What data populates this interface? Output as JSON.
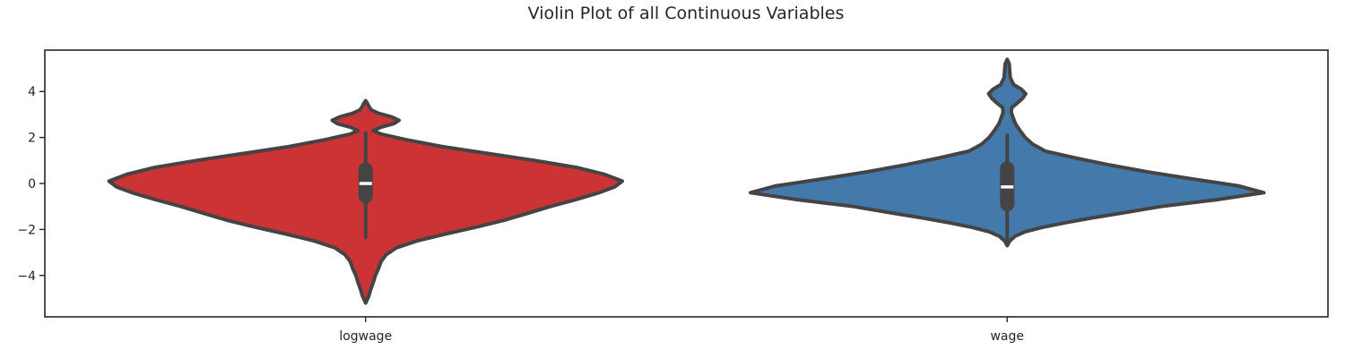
{
  "chart_data": {
    "type": "violin",
    "title": "Violin Plot of all Continuous Variables",
    "xlabel": "",
    "ylabel": "",
    "ylim": [
      -5.8,
      5.8
    ],
    "yticks": [
      -4,
      -2,
      0,
      2,
      4
    ],
    "ytick_labels": [
      "−4",
      "−2",
      "0",
      "2",
      "4"
    ],
    "grid": false,
    "categories": [
      "logwage",
      "wage"
    ],
    "series": [
      {
        "category": "logwage",
        "color": "#cb3335",
        "median": 0.0,
        "q1": -0.55,
        "q3": 0.6,
        "whisker_low": -2.35,
        "whisker_high": 2.2,
        "min": -5.2,
        "max": 3.6,
        "density": [
          [
            -5.2,
            0.0
          ],
          [
            -4.9,
            0.012
          ],
          [
            -4.6,
            0.02
          ],
          [
            -4.3,
            0.03
          ],
          [
            -4.0,
            0.038
          ],
          [
            -3.7,
            0.05
          ],
          [
            -3.4,
            0.06
          ],
          [
            -3.1,
            0.08
          ],
          [
            -2.8,
            0.12
          ],
          [
            -2.5,
            0.2
          ],
          [
            -2.2,
            0.31
          ],
          [
            -1.9,
            0.43
          ],
          [
            -1.6,
            0.54
          ],
          [
            -1.3,
            0.63
          ],
          [
            -1.0,
            0.72
          ],
          [
            -0.7,
            0.82
          ],
          [
            -0.4,
            0.91
          ],
          [
            -0.15,
            0.97
          ],
          [
            0.1,
            1.0
          ],
          [
            0.4,
            0.93
          ],
          [
            0.7,
            0.82
          ],
          [
            1.0,
            0.66
          ],
          [
            1.3,
            0.48
          ],
          [
            1.6,
            0.3
          ],
          [
            1.9,
            0.16
          ],
          [
            2.15,
            0.06
          ],
          [
            2.3,
            0.03
          ],
          [
            2.45,
            0.06
          ],
          [
            2.6,
            0.11
          ],
          [
            2.75,
            0.13
          ],
          [
            2.9,
            0.1
          ],
          [
            3.05,
            0.05
          ],
          [
            3.2,
            0.022
          ],
          [
            3.35,
            0.013
          ],
          [
            3.5,
            0.006
          ],
          [
            3.6,
            0.0
          ]
        ]
      },
      {
        "category": "wage",
        "color": "#4479ab",
        "median": -0.15,
        "q1": -0.9,
        "q3": 0.65,
        "whisker_low": -2.5,
        "whisker_high": 2.1,
        "min": -2.7,
        "max": 5.4,
        "density": [
          [
            -2.7,
            0.0
          ],
          [
            -2.5,
            0.01
          ],
          [
            -2.3,
            0.03
          ],
          [
            -2.1,
            0.07
          ],
          [
            -1.9,
            0.14
          ],
          [
            -1.7,
            0.23
          ],
          [
            -1.5,
            0.33
          ],
          [
            -1.3,
            0.44
          ],
          [
            -1.0,
            0.6
          ],
          [
            -0.7,
            0.82
          ],
          [
            -0.4,
            1.0
          ],
          [
            -0.1,
            0.9
          ],
          [
            0.2,
            0.72
          ],
          [
            0.5,
            0.55
          ],
          [
            0.8,
            0.4
          ],
          [
            1.1,
            0.27
          ],
          [
            1.4,
            0.15
          ],
          [
            1.7,
            0.1
          ],
          [
            2.0,
            0.07
          ],
          [
            2.3,
            0.05
          ],
          [
            2.6,
            0.032
          ],
          [
            2.9,
            0.022
          ],
          [
            3.1,
            0.016
          ],
          [
            3.3,
            0.018
          ],
          [
            3.5,
            0.04
          ],
          [
            3.7,
            0.06
          ],
          [
            3.9,
            0.072
          ],
          [
            4.1,
            0.055
          ],
          [
            4.3,
            0.025
          ],
          [
            4.6,
            0.012
          ],
          [
            4.9,
            0.01
          ],
          [
            5.2,
            0.008
          ],
          [
            5.4,
            0.0
          ]
        ]
      }
    ]
  }
}
